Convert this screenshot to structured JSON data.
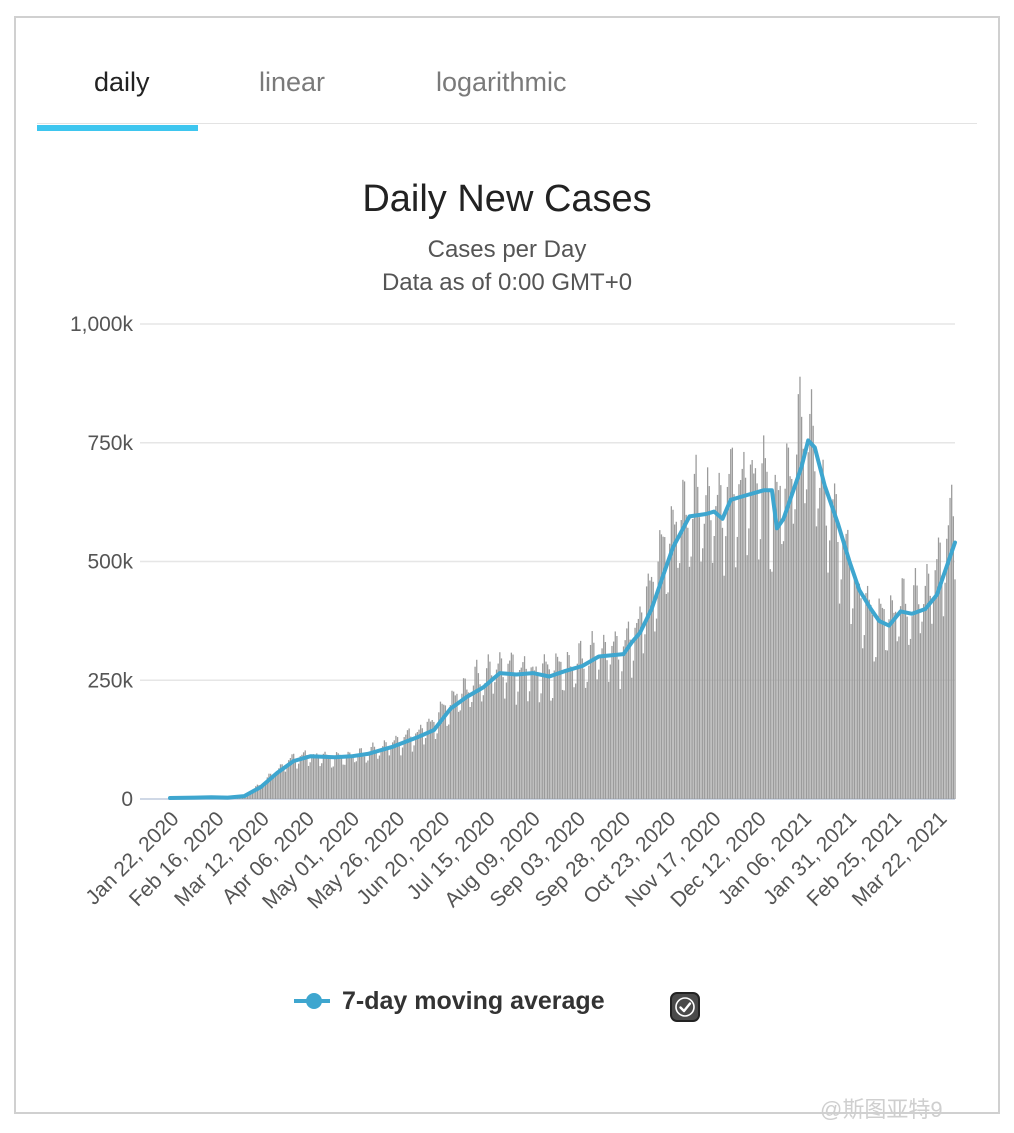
{
  "tabs": [
    {
      "label": "daily",
      "active": true
    },
    {
      "label": "linear",
      "active": false
    },
    {
      "label": "logarithmic",
      "active": false
    }
  ],
  "colors": {
    "accent": "#3ec6ef",
    "bar": "#9b9b9b",
    "line": "#3ea6cf",
    "grid": "#e6e6e6"
  },
  "chart_data": {
    "type": "bar",
    "title": "Daily New Cases",
    "subtitle": "Cases per Day",
    "subtitle2": "Data as of 0:00 GMT+0",
    "ylim": [
      0,
      1000000
    ],
    "y_ticks": [
      {
        "value": 0,
        "label": "0"
      },
      {
        "value": 250000,
        "label": "250k"
      },
      {
        "value": 500000,
        "label": "500k"
      },
      {
        "value": 750000,
        "label": "750k"
      },
      {
        "value": 1000000,
        "label": "1,000k"
      }
    ],
    "x_start": "Jan 22, 2020",
    "x_end": "Mar 28, 2021",
    "num_days": 432,
    "x_tick_labels": [
      "Jan 22, 2020",
      "Feb 16, 2020",
      "Mar 12, 2020",
      "Apr 06, 2020",
      "May 01, 2020",
      "May 26, 2020",
      "Jun 20, 2020",
      "Jul 15, 2020",
      "Aug 09, 2020",
      "Sep 03, 2020",
      "Sep 28, 2020",
      "Oct 23, 2020",
      "Nov 17, 2020",
      "Dec 12, 2020",
      "Jan 06, 2021",
      "Jan 31, 2021",
      "Feb 25, 2021",
      "Mar 22, 2021"
    ],
    "series": [
      {
        "name": "7-day moving average",
        "type": "line",
        "points": [
          [
            0,
            2000
          ],
          [
            15,
            3000
          ],
          [
            25,
            3500
          ],
          [
            35,
            3000
          ],
          [
            45,
            6000
          ],
          [
            55,
            25000
          ],
          [
            65,
            55000
          ],
          [
            75,
            80000
          ],
          [
            85,
            90000
          ],
          [
            100,
            88000
          ],
          [
            110,
            90000
          ],
          [
            120,
            95000
          ],
          [
            135,
            110000
          ],
          [
            150,
            130000
          ],
          [
            160,
            145000
          ],
          [
            170,
            190000
          ],
          [
            180,
            215000
          ],
          [
            190,
            235000
          ],
          [
            200,
            265000
          ],
          [
            210,
            262000
          ],
          [
            220,
            265000
          ],
          [
            230,
            258000
          ],
          [
            240,
            270000
          ],
          [
            250,
            280000
          ],
          [
            260,
            300000
          ],
          [
            275,
            305000
          ],
          [
            280,
            330000
          ],
          [
            285,
            350000
          ],
          [
            292,
            400000
          ],
          [
            300,
            480000
          ],
          [
            305,
            530000
          ],
          [
            315,
            595000
          ],
          [
            325,
            600000
          ],
          [
            330,
            605000
          ],
          [
            335,
            590000
          ],
          [
            340,
            630000
          ],
          [
            350,
            640000
          ],
          [
            360,
            650000
          ],
          [
            365,
            650000
          ],
          [
            368,
            570000
          ],
          [
            372,
            590000
          ],
          [
            378,
            650000
          ],
          [
            383,
            700000
          ],
          [
            387,
            755000
          ],
          [
            391,
            740000
          ],
          [
            397,
            660000
          ],
          [
            405,
            580000
          ],
          [
            412,
            500000
          ],
          [
            418,
            440000
          ],
          [
            425,
            400000
          ],
          [
            430,
            375000
          ],
          [
            436,
            365000
          ],
          [
            443,
            395000
          ],
          [
            450,
            390000
          ],
          [
            458,
            400000
          ],
          [
            465,
            430000
          ],
          [
            472,
            500000
          ],
          [
            476,
            540000
          ]
        ]
      },
      {
        "name": "Daily cases",
        "type": "bar",
        "anchors": [
          [
            0,
            2000
          ],
          [
            15,
            4000
          ],
          [
            25,
            4000
          ],
          [
            35,
            3000
          ],
          [
            45,
            8000
          ],
          [
            55,
            30000
          ],
          [
            65,
            60000
          ],
          [
            75,
            85000
          ],
          [
            85,
            90000
          ],
          [
            100,
            85000
          ],
          [
            110,
            90000
          ],
          [
            120,
            95000
          ],
          [
            135,
            115000
          ],
          [
            150,
            135000
          ],
          [
            160,
            160000
          ],
          [
            170,
            200000
          ],
          [
            180,
            230000
          ],
          [
            190,
            255000
          ],
          [
            200,
            275000
          ],
          [
            210,
            265000
          ],
          [
            220,
            260000
          ],
          [
            230,
            265000
          ],
          [
            240,
            275000
          ],
          [
            250,
            285000
          ],
          [
            260,
            305000
          ],
          [
            275,
            310000
          ],
          [
            280,
            330000
          ],
          [
            285,
            370000
          ],
          [
            292,
            440000
          ],
          [
            300,
            520000
          ],
          [
            305,
            560000
          ],
          [
            315,
            600000
          ],
          [
            325,
            610000
          ],
          [
            330,
            600000
          ],
          [
            335,
            610000
          ],
          [
            340,
            640000
          ],
          [
            350,
            650000
          ],
          [
            360,
            660000
          ],
          [
            365,
            600000
          ],
          [
            368,
            610000
          ],
          [
            372,
            640000
          ],
          [
            378,
            700000
          ],
          [
            383,
            760000
          ],
          [
            387,
            770000
          ],
          [
            391,
            700000
          ],
          [
            397,
            620000
          ],
          [
            405,
            560000
          ],
          [
            412,
            480000
          ],
          [
            418,
            420000
          ],
          [
            425,
            380000
          ],
          [
            430,
            370000
          ],
          [
            436,
            380000
          ],
          [
            443,
            400000
          ],
          [
            450,
            400000
          ],
          [
            458,
            430000
          ],
          [
            465,
            470000
          ],
          [
            472,
            540000
          ],
          [
            476,
            600000
          ]
        ]
      }
    ],
    "legend": [
      {
        "label": "7-day moving average",
        "checked": true
      }
    ]
  },
  "watermark": "@斯图亚特9"
}
